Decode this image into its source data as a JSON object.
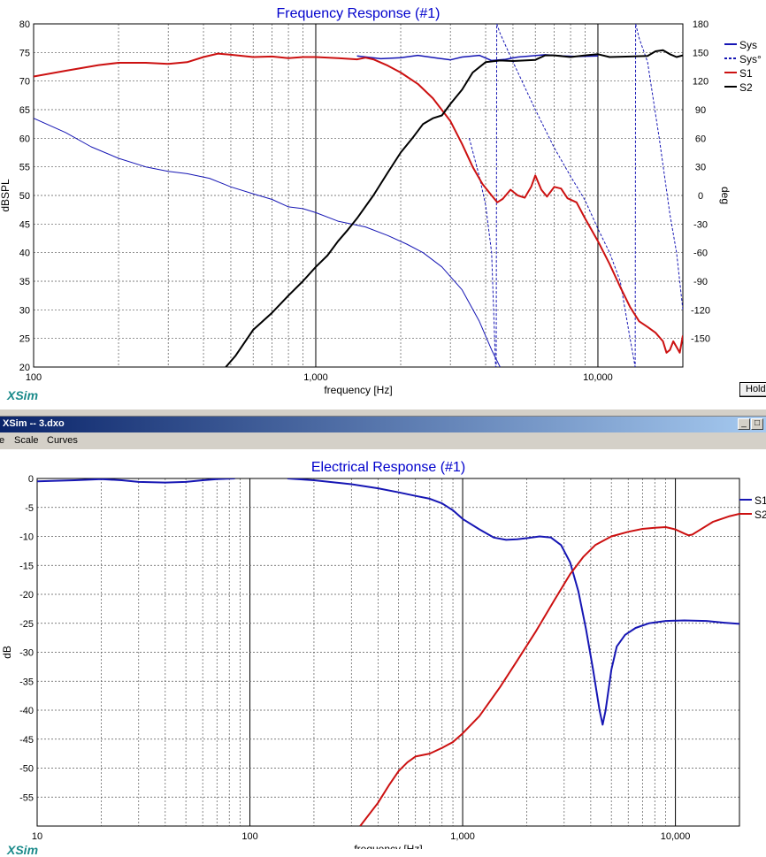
{
  "window": {
    "title": "XSim -- 3.dxo",
    "menu": [
      "e",
      "Scale",
      "Curves"
    ],
    "brand": "XSim",
    "hold_label": "Hold",
    "btn_minimize": "_",
    "btn_restore": "□"
  },
  "colors": {
    "blue": "#1616b4",
    "red": "#cc1111",
    "black": "#000000",
    "title": "#0000cc",
    "teal": "#1a8a8a"
  },
  "chart_data": [
    {
      "type": "line",
      "title": "Frequency Response (#1)",
      "xlabel": "frequency [Hz]",
      "ylabel": "dBSPL",
      "y2label": "deg",
      "xscale": "log",
      "xlim": [
        100,
        20000
      ],
      "ylim": [
        20,
        80
      ],
      "y2lim": [
        -180,
        180
      ],
      "x_tick_labels": [
        {
          "value": 100,
          "label": "100"
        },
        {
          "value": 1000,
          "label": "1,000"
        },
        {
          "value": 10000,
          "label": "10,000"
        }
      ],
      "y_ticks": [
        80,
        75,
        70,
        65,
        60,
        55,
        50,
        45,
        40,
        35,
        30,
        25,
        20
      ],
      "y2_ticks": [
        180,
        150,
        120,
        90,
        60,
        30,
        0,
        -30,
        -60,
        -90,
        -120,
        -150
      ],
      "grid": true,
      "legend": "right",
      "series": [
        {
          "name": "Sys",
          "axis": "y",
          "color": "#1616b4",
          "width": 1.5,
          "dash": "",
          "points": [
            [
              1400,
              74.4
            ],
            [
              1700,
              73.9
            ],
            [
              2000,
              74.1
            ],
            [
              2300,
              74.5
            ],
            [
              2700,
              74.0
            ],
            [
              3000,
              73.7
            ],
            [
              3300,
              74.2
            ],
            [
              3800,
              74.5
            ],
            [
              4200,
              73.6
            ],
            [
              4700,
              73.8
            ],
            [
              5200,
              74.2
            ],
            [
              5800,
              74.4
            ],
            [
              6500,
              74.6
            ],
            [
              7500,
              74.4
            ],
            [
              8500,
              74.3
            ],
            [
              10000,
              74.4
            ]
          ]
        },
        {
          "name": "Sys°",
          "axis": "y2",
          "color": "#1616b4",
          "width": 1,
          "dash": "3,2",
          "points": [
            [
              3500,
              60
            ],
            [
              3800,
              20
            ],
            [
              4000,
              -10
            ],
            [
              4200,
              -60
            ],
            [
              4340,
              -180
            ],
            [
              4360,
              -180
            ],
            [
              4380,
              180
            ],
            [
              4500,
              170
            ],
            [
              5000,
              140
            ],
            [
              6000,
              90
            ],
            [
              7000,
              50
            ],
            [
              8000,
              20
            ],
            [
              9000,
              -5
            ],
            [
              10000,
              -35
            ],
            [
              11000,
              -60
            ],
            [
              12000,
              -90
            ],
            [
              13000,
              -150
            ],
            [
              13550,
              -180
            ],
            [
              13600,
              180
            ],
            [
              14000,
              165
            ],
            [
              15000,
              140
            ],
            [
              16500,
              60
            ],
            [
              18000,
              -20
            ],
            [
              19000,
              -60
            ],
            [
              20000,
              -120
            ]
          ]
        },
        {
          "name": "Sys-magnitude-thin",
          "axis": "y",
          "color": "#1616b4",
          "width": 1,
          "dash": "",
          "points": [
            [
              100,
              63.5
            ],
            [
              130,
              61
            ],
            [
              160,
              58.5
            ],
            [
              200,
              56.5
            ],
            [
              250,
              55
            ],
            [
              300,
              54.2
            ],
            [
              350,
              53.8
            ],
            [
              420,
              53
            ],
            [
              500,
              51.5
            ],
            [
              600,
              50.3
            ],
            [
              700,
              49.3
            ],
            [
              800,
              48
            ],
            [
              900,
              47.7
            ],
            [
              1000,
              47
            ],
            [
              1200,
              45.5
            ],
            [
              1500,
              44.5
            ],
            [
              1800,
              43
            ],
            [
              2100,
              41.5
            ],
            [
              2400,
              40
            ],
            [
              2800,
              37.5
            ],
            [
              3300,
              33.5
            ],
            [
              3800,
              28
            ],
            [
              4200,
              23
            ],
            [
              4500,
              20
            ]
          ]
        },
        {
          "name": "S1",
          "axis": "y",
          "color": "#cc1111",
          "width": 2,
          "dash": "",
          "points": [
            [
              100,
              70.8
            ],
            [
              130,
              71.8
            ],
            [
              170,
              72.8
            ],
            [
              200,
              73.2
            ],
            [
              250,
              73.2
            ],
            [
              300,
              73.0
            ],
            [
              350,
              73.3
            ],
            [
              400,
              74.2
            ],
            [
              450,
              74.8
            ],
            [
              500,
              74.6
            ],
            [
              600,
              74.2
            ],
            [
              700,
              74.3
            ],
            [
              800,
              74.0
            ],
            [
              900,
              74.2
            ],
            [
              1000,
              74.2
            ],
            [
              1200,
              74.0
            ],
            [
              1400,
              73.8
            ],
            [
              1500,
              74.1
            ],
            [
              1600,
              73.8
            ],
            [
              1800,
              72.7
            ],
            [
              2000,
              71.5
            ],
            [
              2300,
              69.5
            ],
            [
              2600,
              67
            ],
            [
              3000,
              63
            ],
            [
              3300,
              59
            ],
            [
              3600,
              55
            ],
            [
              3900,
              52
            ],
            [
              4200,
              50
            ],
            [
              4400,
              48.8
            ],
            [
              4600,
              49.4
            ],
            [
              4900,
              51
            ],
            [
              5200,
              50
            ],
            [
              5500,
              49.6
            ],
            [
              5800,
              51.5
            ],
            [
              6000,
              53.5
            ],
            [
              6300,
              51
            ],
            [
              6600,
              49.8
            ],
            [
              7000,
              51.5
            ],
            [
              7400,
              51.2
            ],
            [
              7800,
              49.5
            ],
            [
              8400,
              48.8
            ],
            [
              9000,
              46
            ],
            [
              10000,
              42
            ],
            [
              11000,
              38
            ],
            [
              12000,
              34
            ],
            [
              13000,
              30.5
            ],
            [
              14000,
              28
            ],
            [
              15000,
              27
            ],
            [
              16000,
              26
            ],
            [
              17000,
              24.5
            ],
            [
              17500,
              22.5
            ],
            [
              18000,
              23
            ],
            [
              18500,
              24.5
            ],
            [
              19000,
              23.5
            ],
            [
              19500,
              22.5
            ],
            [
              20000,
              25.5
            ]
          ]
        },
        {
          "name": "S2",
          "axis": "y",
          "color": "#000000",
          "width": 2,
          "dash": "",
          "points": [
            [
              480,
              20
            ],
            [
              520,
              22
            ],
            [
              600,
              26.5
            ],
            [
              700,
              29.5
            ],
            [
              800,
              32.5
            ],
            [
              900,
              35
            ],
            [
              1000,
              37.5
            ],
            [
              1100,
              39.5
            ],
            [
              1200,
              42
            ],
            [
              1300,
              44
            ],
            [
              1400,
              46
            ],
            [
              1600,
              50
            ],
            [
              1800,
              54
            ],
            [
              2000,
              57.5
            ],
            [
              2200,
              60
            ],
            [
              2400,
              62.5
            ],
            [
              2600,
              63.5
            ],
            [
              2800,
              64
            ],
            [
              3000,
              66
            ],
            [
              3300,
              68.5
            ],
            [
              3600,
              71.5
            ],
            [
              4000,
              73.3
            ],
            [
              4500,
              73.6
            ],
            [
              5000,
              73.5
            ],
            [
              6000,
              73.7
            ],
            [
              6500,
              74.5
            ],
            [
              7000,
              74.5
            ],
            [
              8000,
              74.2
            ],
            [
              9000,
              74.5
            ],
            [
              10000,
              74.7
            ],
            [
              11000,
              74.2
            ],
            [
              13000,
              74.3
            ],
            [
              15000,
              74.4
            ],
            [
              16000,
              75.2
            ],
            [
              17000,
              75.4
            ],
            [
              18000,
              74.7
            ],
            [
              19000,
              74.2
            ],
            [
              20000,
              74.5
            ]
          ]
        }
      ]
    },
    {
      "type": "line",
      "title": "Electrical Response (#1)",
      "xlabel": "frequency [Hz]",
      "ylabel": "dB",
      "xscale": "log",
      "xlim": [
        10,
        20000
      ],
      "ylim": [
        -60,
        0
      ],
      "x_tick_labels": [
        {
          "value": 10,
          "label": "10"
        },
        {
          "value": 100,
          "label": "100"
        },
        {
          "value": 1000,
          "label": "1,000"
        },
        {
          "value": 10000,
          "label": "10,000"
        }
      ],
      "y_ticks": [
        0,
        -5,
        -10,
        -15,
        -20,
        -25,
        -30,
        -35,
        -40,
        -45,
        -50,
        -55
      ],
      "grid": true,
      "legend": "right",
      "series": [
        {
          "name": "S1",
          "axis": "y",
          "color": "#1616b4",
          "width": 2,
          "dash": "",
          "points": [
            [
              10,
              -0.5
            ],
            [
              15,
              -0.3
            ],
            [
              20,
              -0.1
            ],
            [
              25,
              -0.3
            ],
            [
              30,
              -0.6
            ],
            [
              40,
              -0.7
            ],
            [
              50,
              -0.6
            ],
            [
              60,
              -0.3
            ],
            [
              70,
              -0.1
            ],
            [
              85,
              0
            ]
          ]
        },
        {
          "name": "S1-segment-2",
          "axis": "y",
          "color": "#1616b4",
          "width": 2,
          "dash": "",
          "points": [
            [
              150,
              0
            ],
            [
              200,
              -0.3
            ],
            [
              300,
              -1
            ],
            [
              400,
              -1.7
            ],
            [
              500,
              -2.4
            ],
            [
              600,
              -3
            ],
            [
              700,
              -3.5
            ],
            [
              800,
              -4.3
            ],
            [
              900,
              -5.5
            ],
            [
              1000,
              -7
            ],
            [
              1200,
              -8.8
            ],
            [
              1400,
              -10.2
            ],
            [
              1600,
              -10.6
            ],
            [
              1800,
              -10.5
            ],
            [
              2000,
              -10.3
            ],
            [
              2300,
              -10.0
            ],
            [
              2600,
              -10.2
            ],
            [
              2900,
              -11.5
            ],
            [
              3200,
              -14.5
            ],
            [
              3500,
              -19.5
            ],
            [
              3800,
              -26
            ],
            [
              4100,
              -33
            ],
            [
              4400,
              -40
            ],
            [
              4550,
              -42.5
            ],
            [
              4700,
              -40
            ],
            [
              5000,
              -33
            ],
            [
              5300,
              -29
            ],
            [
              5800,
              -27
            ],
            [
              6500,
              -25.8
            ],
            [
              7500,
              -25
            ],
            [
              9000,
              -24.6
            ],
            [
              11000,
              -24.5
            ],
            [
              14000,
              -24.6
            ],
            [
              17000,
              -24.9
            ],
            [
              20000,
              -25.1
            ]
          ]
        },
        {
          "name": "S2",
          "axis": "y",
          "color": "#cc1111",
          "width": 2,
          "dash": "",
          "points": [
            [
              330,
              -60
            ],
            [
              400,
              -56
            ],
            [
              450,
              -53
            ],
            [
              500,
              -50.5
            ],
            [
              550,
              -49
            ],
            [
              600,
              -48
            ],
            [
              700,
              -47.5
            ],
            [
              800,
              -46.5
            ],
            [
              900,
              -45.5
            ],
            [
              1000,
              -44
            ],
            [
              1200,
              -41
            ],
            [
              1500,
              -36
            ],
            [
              1800,
              -31.5
            ],
            [
              2200,
              -26.5
            ],
            [
              2700,
              -21
            ],
            [
              3200,
              -16.5
            ],
            [
              3700,
              -13.5
            ],
            [
              4200,
              -11.5
            ],
            [
              5000,
              -10
            ],
            [
              6000,
              -9.2
            ],
            [
              7000,
              -8.7
            ],
            [
              8000,
              -8.5
            ],
            [
              9000,
              -8.4
            ],
            [
              10000,
              -8.8
            ],
            [
              11000,
              -9.5
            ],
            [
              11500,
              -9.8
            ],
            [
              12000,
              -9.7
            ],
            [
              13000,
              -8.9
            ],
            [
              15000,
              -7.5
            ],
            [
              18000,
              -6.5
            ],
            [
              20000,
              -6.1
            ]
          ]
        }
      ]
    }
  ],
  "legend_labels": {
    "top": [
      "Sys",
      "Sys°",
      "S1",
      "S2"
    ],
    "bottom": [
      "S1",
      "S2"
    ]
  }
}
